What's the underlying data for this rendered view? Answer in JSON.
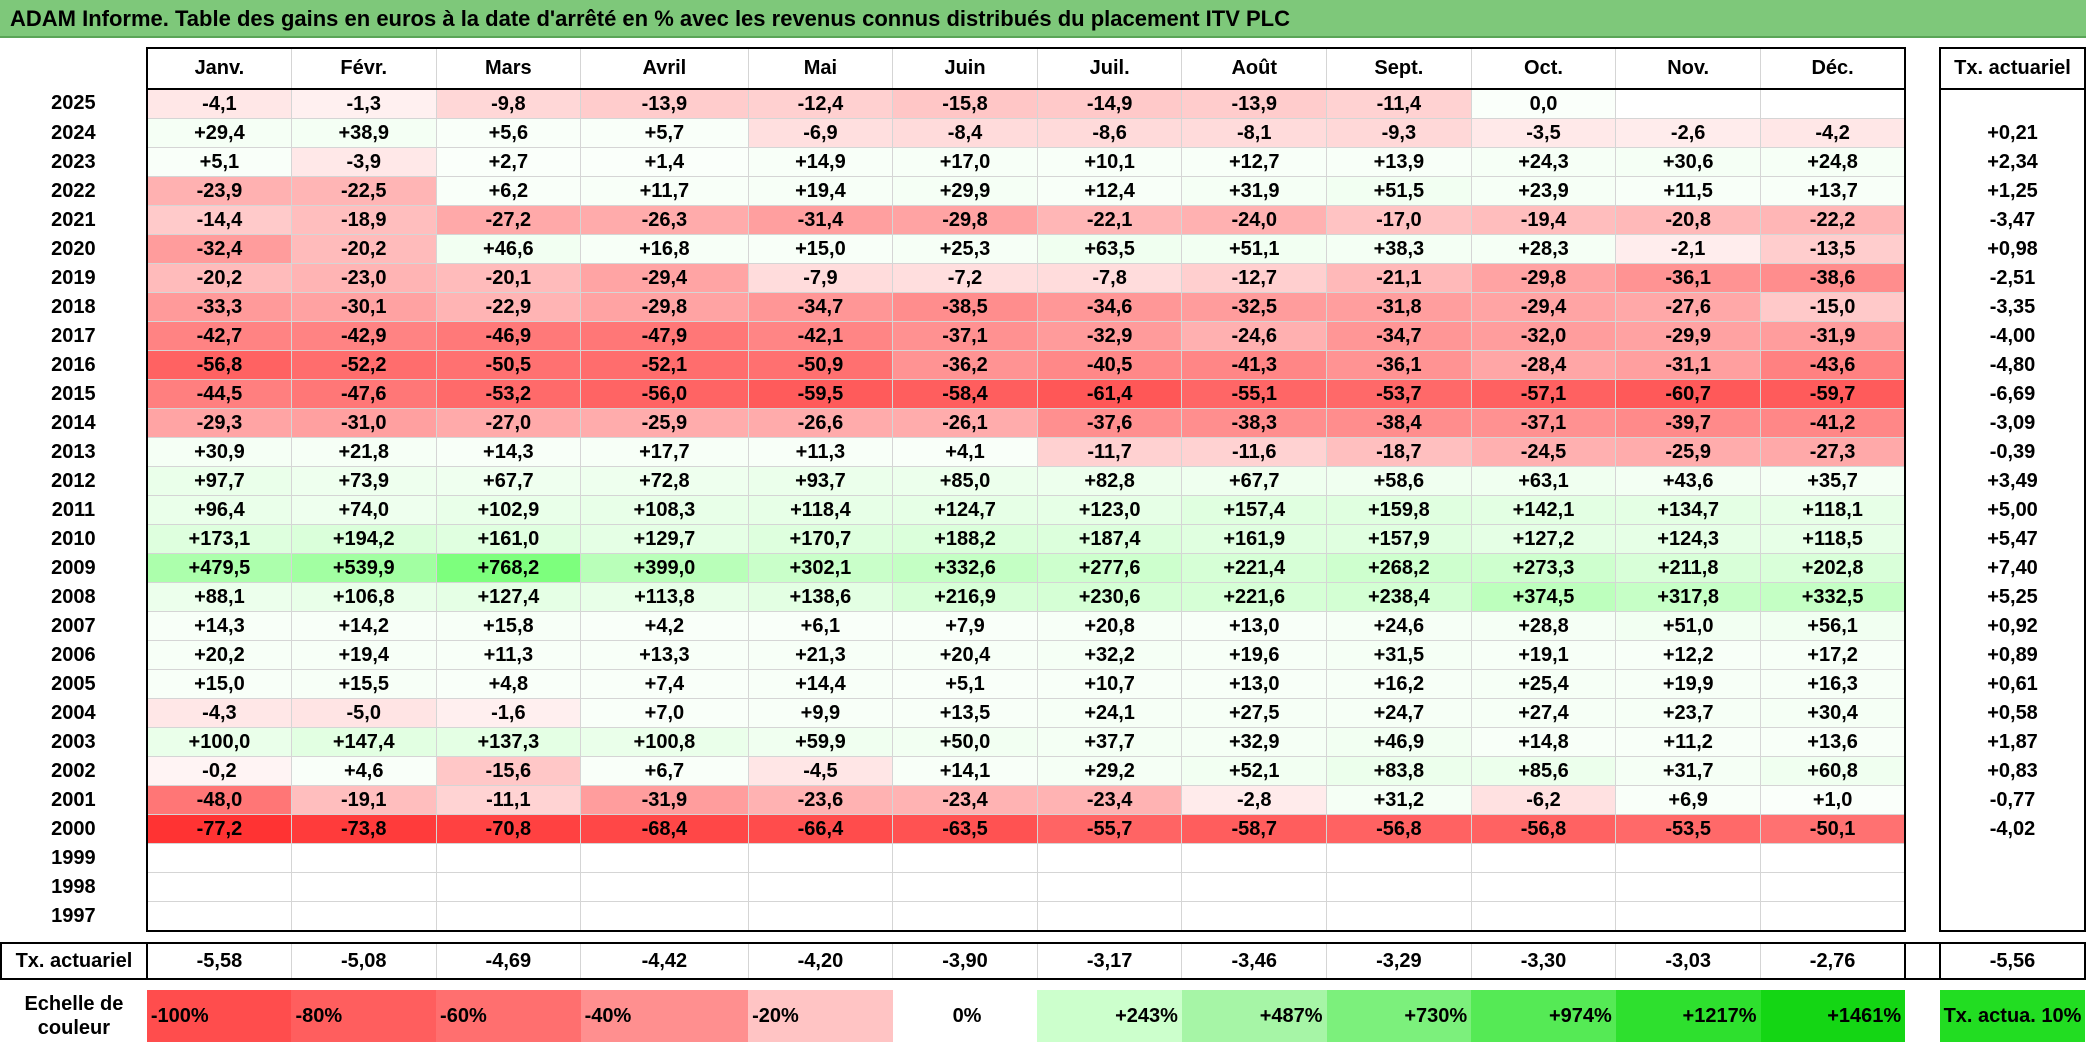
{
  "title": "ADAM Informe. Table des gains en euros à la date d'arrêté en % avec les revenus connus distribués du placement ITV PLC",
  "months": [
    "Janv.",
    "Févr.",
    "Mars",
    "Avril",
    "Mai",
    "Juin",
    "Juil.",
    "Août",
    "Sept.",
    "Oct.",
    "Nov.",
    "Déc."
  ],
  "actuarial_header": "Tx. actuariel",
  "rows": [
    {
      "year": "2025",
      "values": [
        "-4,1",
        "-1,3",
        "-9,8",
        "-13,9",
        "-12,4",
        "-15,8",
        "-14,9",
        "-13,9",
        "-11,4",
        "0,0",
        "",
        ""
      ],
      "act": ""
    },
    {
      "year": "2024",
      "values": [
        "+29,4",
        "+38,9",
        "+5,6",
        "+5,7",
        "-6,9",
        "-8,4",
        "-8,6",
        "-8,1",
        "-9,3",
        "-3,5",
        "-2,6",
        "-4,2"
      ],
      "act": "+0,21"
    },
    {
      "year": "2023",
      "values": [
        "+5,1",
        "-3,9",
        "+2,7",
        "+1,4",
        "+14,9",
        "+17,0",
        "+10,1",
        "+12,7",
        "+13,9",
        "+24,3",
        "+30,6",
        "+24,8"
      ],
      "act": "+2,34"
    },
    {
      "year": "2022",
      "values": [
        "-23,9",
        "-22,5",
        "+6,2",
        "+11,7",
        "+19,4",
        "+29,9",
        "+12,4",
        "+31,9",
        "+51,5",
        "+23,9",
        "+11,5",
        "+13,7"
      ],
      "act": "+1,25"
    },
    {
      "year": "2021",
      "values": [
        "-14,4",
        "-18,9",
        "-27,2",
        "-26,3",
        "-31,4",
        "-29,8",
        "-22,1",
        "-24,0",
        "-17,0",
        "-19,4",
        "-20,8",
        "-22,2"
      ],
      "act": "-3,47"
    },
    {
      "year": "2020",
      "values": [
        "-32,4",
        "-20,2",
        "+46,6",
        "+16,8",
        "+15,0",
        "+25,3",
        "+63,5",
        "+51,1",
        "+38,3",
        "+28,3",
        "-2,1",
        "-13,5"
      ],
      "act": "+0,98"
    },
    {
      "year": "2019",
      "values": [
        "-20,2",
        "-23,0",
        "-20,1",
        "-29,4",
        "-7,9",
        "-7,2",
        "-7,8",
        "-12,7",
        "-21,1",
        "-29,8",
        "-36,1",
        "-38,6"
      ],
      "act": "-2,51"
    },
    {
      "year": "2018",
      "values": [
        "-33,3",
        "-30,1",
        "-22,9",
        "-29,8",
        "-34,7",
        "-38,5",
        "-34,6",
        "-32,5",
        "-31,8",
        "-29,4",
        "-27,6",
        "-15,0"
      ],
      "act": "-3,35"
    },
    {
      "year": "2017",
      "values": [
        "-42,7",
        "-42,9",
        "-46,9",
        "-47,9",
        "-42,1",
        "-37,1",
        "-32,9",
        "-24,6",
        "-34,7",
        "-32,0",
        "-29,9",
        "-31,9"
      ],
      "act": "-4,00"
    },
    {
      "year": "2016",
      "values": [
        "-56,8",
        "-52,2",
        "-50,5",
        "-52,1",
        "-50,9",
        "-36,2",
        "-40,5",
        "-41,3",
        "-36,1",
        "-28,4",
        "-31,1",
        "-43,6"
      ],
      "act": "-4,80"
    },
    {
      "year": "2015",
      "values": [
        "-44,5",
        "-47,6",
        "-53,2",
        "-56,0",
        "-59,5",
        "-58,4",
        "-61,4",
        "-55,1",
        "-53,7",
        "-57,1",
        "-60,7",
        "-59,7"
      ],
      "act": "-6,69"
    },
    {
      "year": "2014",
      "values": [
        "-29,3",
        "-31,0",
        "-27,0",
        "-25,9",
        "-26,6",
        "-26,1",
        "-37,6",
        "-38,3",
        "-38,4",
        "-37,1",
        "-39,7",
        "-41,2"
      ],
      "act": "-3,09"
    },
    {
      "year": "2013",
      "values": [
        "+30,9",
        "+21,8",
        "+14,3",
        "+17,7",
        "+11,3",
        "+4,1",
        "-11,7",
        "-11,6",
        "-18,7",
        "-24,5",
        "-25,9",
        "-27,3"
      ],
      "act": "-0,39"
    },
    {
      "year": "2012",
      "values": [
        "+97,7",
        "+73,9",
        "+67,7",
        "+72,8",
        "+93,7",
        "+85,0",
        "+82,8",
        "+67,7",
        "+58,6",
        "+63,1",
        "+43,6",
        "+35,7"
      ],
      "act": "+3,49"
    },
    {
      "year": "2011",
      "values": [
        "+96,4",
        "+74,0",
        "+102,9",
        "+108,3",
        "+118,4",
        "+124,7",
        "+123,0",
        "+157,4",
        "+159,8",
        "+142,1",
        "+134,7",
        "+118,1"
      ],
      "act": "+5,00"
    },
    {
      "year": "2010",
      "values": [
        "+173,1",
        "+194,2",
        "+161,0",
        "+129,7",
        "+170,7",
        "+188,2",
        "+187,4",
        "+161,9",
        "+157,9",
        "+127,2",
        "+124,3",
        "+118,5"
      ],
      "act": "+5,47"
    },
    {
      "year": "2009",
      "values": [
        "+479,5",
        "+539,9",
        "+768,2",
        "+399,0",
        "+302,1",
        "+332,6",
        "+277,6",
        "+221,4",
        "+268,2",
        "+273,3",
        "+211,8",
        "+202,8"
      ],
      "act": "+7,40"
    },
    {
      "year": "2008",
      "values": [
        "+88,1",
        "+106,8",
        "+127,4",
        "+113,8",
        "+138,6",
        "+216,9",
        "+230,6",
        "+221,6",
        "+238,4",
        "+374,5",
        "+317,8",
        "+332,5"
      ],
      "act": "+5,25"
    },
    {
      "year": "2007",
      "values": [
        "+14,3",
        "+14,2",
        "+15,8",
        "+4,2",
        "+6,1",
        "+7,9",
        "+20,8",
        "+13,0",
        "+24,6",
        "+28,8",
        "+51,0",
        "+56,1"
      ],
      "act": "+0,92"
    },
    {
      "year": "2006",
      "values": [
        "+20,2",
        "+19,4",
        "+11,3",
        "+13,3",
        "+21,3",
        "+20,4",
        "+32,2",
        "+19,6",
        "+31,5",
        "+19,1",
        "+12,2",
        "+17,2"
      ],
      "act": "+0,89"
    },
    {
      "year": "2005",
      "values": [
        "+15,0",
        "+15,5",
        "+4,8",
        "+7,4",
        "+14,4",
        "+5,1",
        "+10,7",
        "+13,0",
        "+16,2",
        "+25,4",
        "+19,9",
        "+16,3"
      ],
      "act": "+0,61"
    },
    {
      "year": "2004",
      "values": [
        "-4,3",
        "-5,0",
        "-1,6",
        "+7,0",
        "+9,9",
        "+13,5",
        "+24,1",
        "+27,5",
        "+24,7",
        "+27,4",
        "+23,7",
        "+30,4"
      ],
      "act": "+0,58"
    },
    {
      "year": "2003",
      "values": [
        "+100,0",
        "+147,4",
        "+137,3",
        "+100,8",
        "+59,9",
        "+50,0",
        "+37,7",
        "+32,9",
        "+46,9",
        "+14,8",
        "+11,2",
        "+13,6"
      ],
      "act": "+1,87"
    },
    {
      "year": "2002",
      "values": [
        "-0,2",
        "+4,6",
        "-15,6",
        "+6,7",
        "-4,5",
        "+14,1",
        "+29,2",
        "+52,1",
        "+83,8",
        "+85,6",
        "+31,7",
        "+60,8"
      ],
      "act": "+0,83"
    },
    {
      "year": "2001",
      "values": [
        "-48,0",
        "-19,1",
        "-11,1",
        "-31,9",
        "-23,6",
        "-23,4",
        "-23,4",
        "-2,8",
        "+31,2",
        "-6,2",
        "+6,9",
        "+1,0"
      ],
      "act": "-0,77"
    },
    {
      "year": "2000",
      "values": [
        "-77,2",
        "-73,8",
        "-70,8",
        "-68,4",
        "-66,4",
        "-63,5",
        "-55,7",
        "-58,7",
        "-56,8",
        "-56,8",
        "-53,5",
        "-50,1"
      ],
      "act": "-4,02"
    },
    {
      "year": "1999",
      "values": [
        "",
        "",
        "",
        "",
        "",
        "",
        "",
        "",
        "",
        "",
        "",
        ""
      ],
      "act": ""
    },
    {
      "year": "1998",
      "values": [
        "",
        "",
        "",
        "",
        "",
        "",
        "",
        "",
        "",
        "",
        "",
        ""
      ],
      "act": ""
    },
    {
      "year": "1997",
      "values": [
        "",
        "",
        "",
        "",
        "",
        "",
        "",
        "",
        "",
        "",
        "",
        ""
      ],
      "act": ""
    }
  ],
  "summary": {
    "label": "Tx. actuariel",
    "values": [
      "-5,58",
      "-5,08",
      "-4,69",
      "-4,42",
      "-4,20",
      "-3,90",
      "-3,17",
      "-3,46",
      "-3,29",
      "-3,30",
      "-3,03",
      "-2,76"
    ],
    "act": "-5,56"
  },
  "scale": {
    "label": "Echelle de couleur",
    "items": [
      "-100%",
      "-80%",
      "-60%",
      "-40%",
      "-20%",
      "0%",
      "+243%",
      "+487%",
      "+730%",
      "+974%",
      "+1217%",
      "+1461%"
    ],
    "colors": [
      "#ff4d4d",
      "#ff5e5e",
      "#ff6f6f",
      "#ff8f8f",
      "#ffc4c4",
      "#ffffff",
      "#ccffcc",
      "#a6f5a6",
      "#7cf07c",
      "#55ea55",
      "#2ee02e",
      "#14d614"
    ],
    "legend": "Tx. actua. 10%",
    "legend_color": "#22dd22"
  },
  "colors": {
    "title_bg": "#7ec87a",
    "negative": "#ff0000",
    "positive": "#22cc22"
  }
}
